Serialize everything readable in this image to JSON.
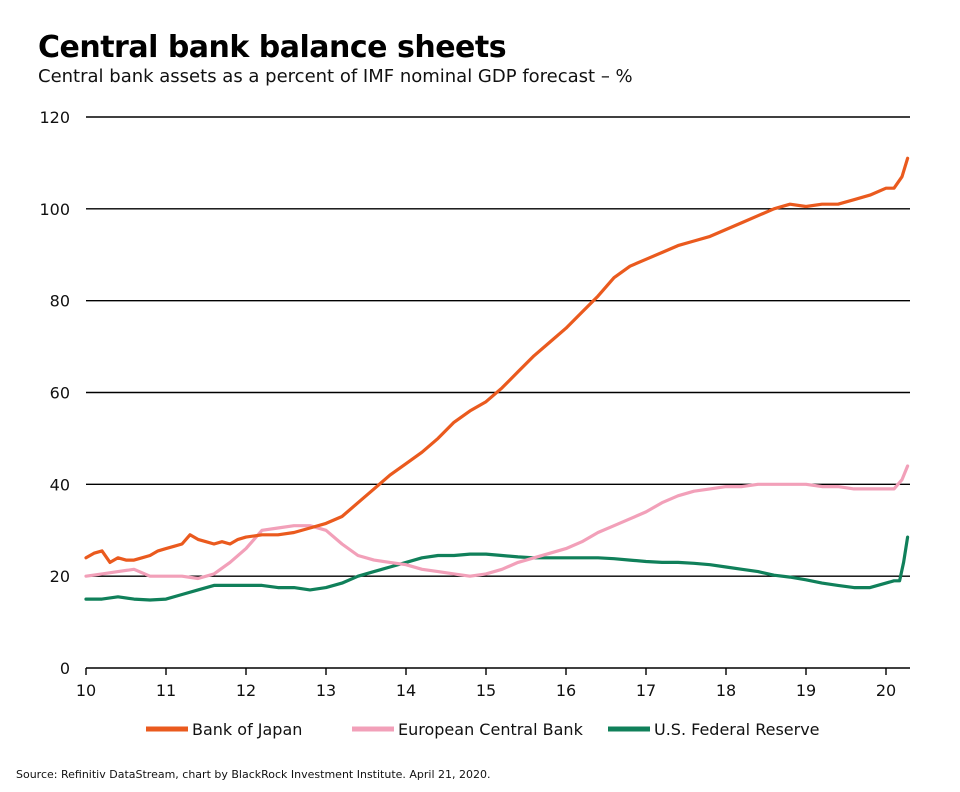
{
  "title": "Central bank balance sheets",
  "subtitle": "Central bank assets as a percent of IMF nominal GDP forecast – %",
  "source": "Source: Refinitiv DataStream, chart by BlackRock Investment Institute. April 21, 2020.",
  "colors": {
    "boj": "#ea5a1e",
    "ecb": "#f2a0b9",
    "fed": "#10805a",
    "axis": "#000000",
    "grid": "#000000"
  },
  "chart_data": {
    "type": "line",
    "title": "Central bank balance sheets",
    "xlabel": "",
    "ylabel": "",
    "xlim": [
      10,
      20.3
    ],
    "ylim": [
      0,
      120
    ],
    "x_ticks": [
      10,
      11,
      12,
      13,
      14,
      15,
      16,
      17,
      18,
      19,
      20
    ],
    "y_ticks": [
      0,
      20,
      40,
      60,
      80,
      100,
      120
    ],
    "grid": true,
    "legend_position": "bottom",
    "series": [
      {
        "name": "Bank of Japan",
        "color": "#ea5a1e",
        "x": [
          10.0,
          10.1,
          10.2,
          10.3,
          10.4,
          10.5,
          10.6,
          10.7,
          10.8,
          10.9,
          11.0,
          11.1,
          11.2,
          11.3,
          11.4,
          11.5,
          11.6,
          11.7,
          11.8,
          11.9,
          12.0,
          12.2,
          12.4,
          12.6,
          12.8,
          13.0,
          13.2,
          13.4,
          13.6,
          13.8,
          14.0,
          14.2,
          14.4,
          14.6,
          14.8,
          15.0,
          15.2,
          15.4,
          15.6,
          15.8,
          16.0,
          16.2,
          16.4,
          16.6,
          16.8,
          17.0,
          17.2,
          17.4,
          17.6,
          17.8,
          18.0,
          18.2,
          18.4,
          18.6,
          18.8,
          19.0,
          19.2,
          19.4,
          19.6,
          19.8,
          20.0,
          20.1,
          20.2,
          20.27
        ],
        "values": [
          24,
          25,
          25.5,
          23,
          24,
          23.5,
          23.5,
          24,
          24.5,
          25.5,
          26,
          26.5,
          27,
          29,
          28,
          27.5,
          27,
          27.5,
          27,
          28,
          28.5,
          29,
          29,
          29.5,
          30.5,
          31.5,
          33,
          36,
          39,
          42,
          44.5,
          47,
          50,
          53.5,
          56,
          58,
          61,
          64.5,
          68,
          71,
          74,
          77.5,
          81,
          85,
          87.5,
          89,
          90.5,
          92,
          93,
          94,
          95.5,
          97,
          98.5,
          100,
          101,
          100.5,
          101,
          101,
          102,
          103,
          104.5,
          104.5,
          107,
          111
        ]
      },
      {
        "name": "European Central Bank",
        "color": "#f2a0b9",
        "x": [
          10.0,
          10.2,
          10.4,
          10.6,
          10.8,
          11.0,
          11.2,
          11.4,
          11.6,
          11.8,
          12.0,
          12.2,
          12.4,
          12.6,
          12.8,
          13.0,
          13.2,
          13.4,
          13.6,
          13.8,
          14.0,
          14.2,
          14.4,
          14.6,
          14.8,
          15.0,
          15.2,
          15.4,
          15.6,
          15.8,
          16.0,
          16.2,
          16.4,
          16.6,
          16.8,
          17.0,
          17.2,
          17.4,
          17.6,
          17.8,
          18.0,
          18.2,
          18.4,
          18.6,
          18.8,
          19.0,
          19.2,
          19.4,
          19.6,
          19.8,
          20.0,
          20.1,
          20.2,
          20.27
        ],
        "values": [
          20,
          20.5,
          21,
          21.5,
          20,
          20,
          20,
          19.5,
          20.5,
          23,
          26,
          30,
          30.5,
          31,
          31,
          30,
          27,
          24.5,
          23.5,
          23,
          22.5,
          21.5,
          21,
          20.5,
          20,
          20.5,
          21.5,
          23,
          24,
          25,
          26,
          27.5,
          29.5,
          31,
          32.5,
          34,
          36,
          37.5,
          38.5,
          39,
          39.5,
          39.5,
          40,
          40,
          40,
          40,
          39.5,
          39.5,
          39,
          39,
          39,
          39,
          41,
          44
        ]
      },
      {
        "name": "U.S. Federal Reserve",
        "color": "#10805a",
        "x": [
          10.0,
          10.2,
          10.4,
          10.6,
          10.8,
          11.0,
          11.2,
          11.4,
          11.6,
          11.8,
          12.0,
          12.2,
          12.4,
          12.6,
          12.8,
          13.0,
          13.2,
          13.4,
          13.6,
          13.8,
          14.0,
          14.2,
          14.4,
          14.6,
          14.8,
          15.0,
          15.2,
          15.4,
          15.6,
          15.8,
          16.0,
          16.2,
          16.4,
          16.6,
          16.8,
          17.0,
          17.2,
          17.4,
          17.6,
          17.8,
          18.0,
          18.2,
          18.4,
          18.6,
          18.8,
          19.0,
          19.2,
          19.4,
          19.6,
          19.8,
          20.0,
          20.1,
          20.17,
          20.22,
          20.27
        ],
        "values": [
          15,
          15,
          15.5,
          15,
          14.8,
          15,
          16,
          17,
          18,
          18,
          18,
          18,
          17.5,
          17.5,
          17,
          17.5,
          18.5,
          20,
          21,
          22,
          23,
          24,
          24.5,
          24.5,
          24.8,
          24.8,
          24.5,
          24.2,
          24,
          24,
          24,
          24,
          24,
          23.8,
          23.5,
          23.2,
          23,
          23,
          22.8,
          22.5,
          22,
          21.5,
          21,
          20.2,
          19.8,
          19.2,
          18.5,
          18,
          17.5,
          17.5,
          18.5,
          19,
          19,
          23,
          28.5
        ]
      }
    ]
  }
}
